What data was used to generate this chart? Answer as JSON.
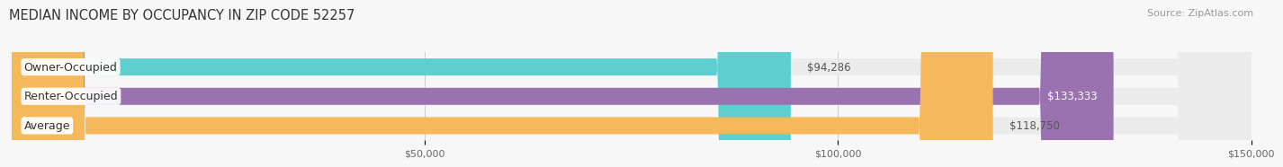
{
  "title": "MEDIAN INCOME BY OCCUPANCY IN ZIP CODE 52257",
  "source": "Source: ZipAtlas.com",
  "categories": [
    "Owner-Occupied",
    "Renter-Occupied",
    "Average"
  ],
  "values": [
    94286,
    133333,
    118750
  ],
  "bar_colors": [
    "#5ECFCF",
    "#9B72B0",
    "#F5B85A"
  ],
  "value_labels": [
    "$94,286",
    "$133,333",
    "$118,750"
  ],
  "value_label_colors": [
    "#555555",
    "#ffffff",
    "#ffffff"
  ],
  "bar_bg_color": "#ebebeb",
  "bg_color": "#f7f7f7",
  "xlim": [
    0,
    150000
  ],
  "xticks": [
    50000,
    100000,
    150000
  ],
  "xtick_labels": [
    "$50,000",
    "$100,000",
    "$150,000"
  ],
  "bar_height": 0.58,
  "title_fontsize": 10.5,
  "label_fontsize": 9,
  "value_fontsize": 8.5,
  "source_fontsize": 8
}
